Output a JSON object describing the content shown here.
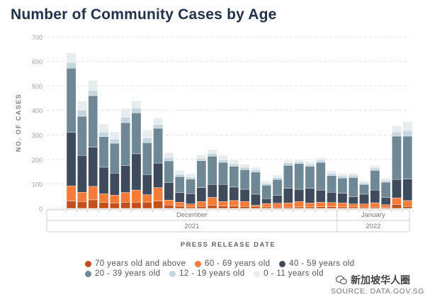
{
  "title": "Number of Community Cases by Age",
  "chart_data": {
    "type": "bar",
    "stacked": true,
    "title": "Number of Community Cases by Age",
    "xlabel": "PRESS RELEASE DATE",
    "ylabel": "NO. OF CASES",
    "ylim": [
      0,
      700
    ],
    "yticks": [
      0,
      100,
      200,
      300,
      400,
      500,
      600,
      700
    ],
    "x_month_labels": [
      {
        "month": "December",
        "year": "2021"
      },
      {
        "month": "January",
        "year": "2022"
      }
    ],
    "series": [
      {
        "name": "70 years old and above",
        "color": "#c2501d",
        "values": [
          30,
          28,
          35,
          25,
          22,
          25,
          25,
          26,
          30,
          14,
          9,
          6,
          8,
          12,
          10,
          10,
          8,
          8,
          6,
          5,
          5,
          6,
          6,
          7,
          7,
          6,
          6,
          5,
          5,
          4,
          15,
          8
        ]
      },
      {
        "name": "60 - 69 years old",
        "color": "#f47b38",
        "values": [
          62,
          38,
          55,
          35,
          32,
          40,
          50,
          30,
          55,
          20,
          16,
          12,
          20,
          33,
          18,
          22,
          20,
          5,
          14,
          16,
          17,
          22,
          16,
          18,
          17,
          16,
          12,
          13,
          18,
          11,
          28,
          24
        ]
      },
      {
        "name": "40 - 59 years old",
        "color": "#3d4b5c",
        "values": [
          218,
          150,
          160,
          108,
          90,
          110,
          148,
          82,
          100,
          72,
          40,
          42,
          57,
          53,
          70,
          55,
          50,
          45,
          20,
          32,
          60,
          50,
          60,
          50,
          42,
          40,
          30,
          40,
          52,
          30,
          75,
          88
        ]
      },
      {
        "name": "20 - 39 years old",
        "color": "#6e8895",
        "values": [
          262,
          160,
          210,
          125,
          122,
          175,
          167,
          130,
          142,
          88,
          65,
          60,
          110,
          115,
          90,
          85,
          80,
          90,
          55,
          65,
          94,
          105,
          90,
          113,
          68,
          62,
          78,
          40,
          80,
          62,
          177,
          175
        ]
      },
      {
        "name": "12 - 19 years old",
        "color": "#c5d6de",
        "values": [
          23,
          25,
          22,
          19,
          17,
          23,
          20,
          20,
          15,
          14,
          10,
          8,
          9,
          12,
          11,
          10,
          10,
          10,
          7,
          8,
          10,
          8,
          9,
          9,
          9,
          9,
          10,
          6,
          10,
          8,
          17,
          23
        ]
      },
      {
        "name": "0 - 11 years old",
        "color": "#e7ecef",
        "values": [
          40,
          37,
          40,
          32,
          30,
          35,
          30,
          32,
          26,
          20,
          15,
          14,
          15,
          15,
          17,
          16,
          12,
          10,
          10,
          10,
          10,
          9,
          10,
          10,
          10,
          9,
          8,
          8,
          10,
          8,
          26,
          35
        ]
      }
    ]
  },
  "legend": [
    {
      "label": "70 years old and above",
      "color": "#c2501d"
    },
    {
      "label": "60 - 69 years old",
      "color": "#f47b38"
    },
    {
      "label": "40 - 59 years old",
      "color": "#3d4b5c"
    },
    {
      "label": "20 - 39 years old",
      "color": "#6e8895"
    },
    {
      "label": "12 - 19 years old",
      "color": "#c5d6de"
    },
    {
      "label": "0 - 11 years old",
      "color": "#e7ecef"
    }
  ],
  "watermark": "新加坡华人圈",
  "source": "SOURCE: DATA.GOV.SG"
}
